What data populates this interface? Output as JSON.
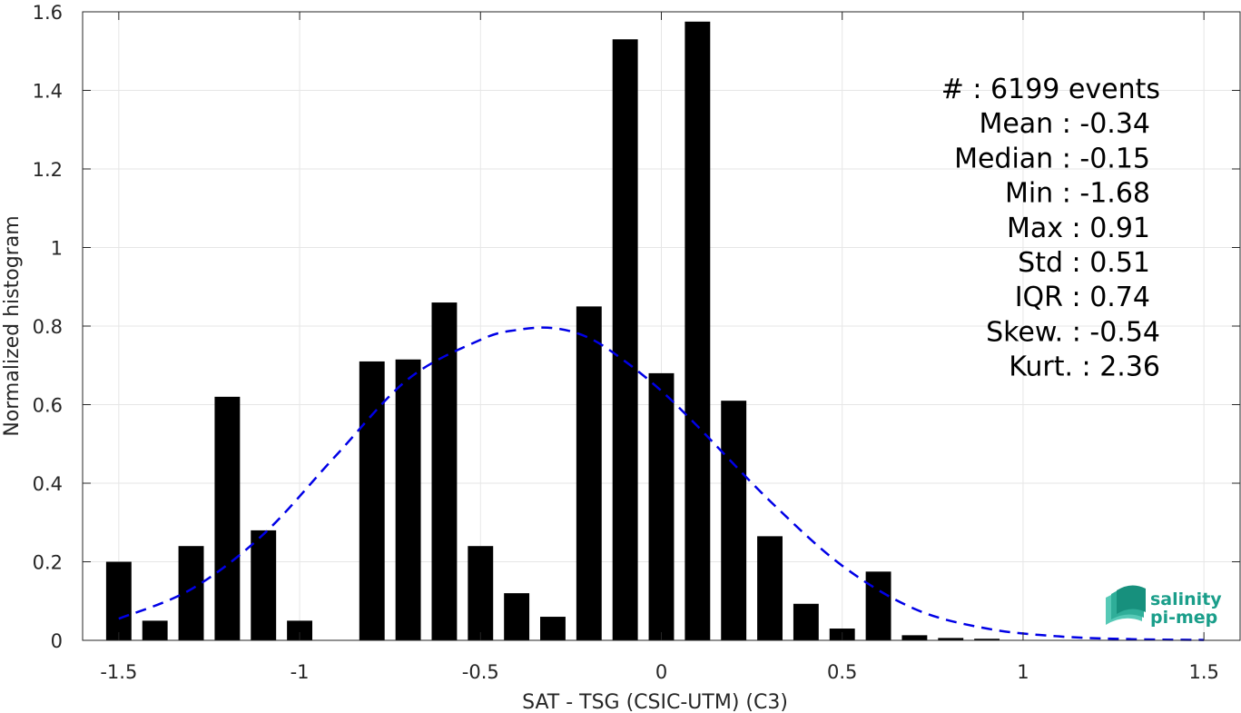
{
  "chart_data": {
    "type": "bar",
    "xlabel": "SAT - TSG (CSIC-UTM) (C3)",
    "ylabel": "Normalized histogram",
    "xlim": [
      -1.6,
      1.6
    ],
    "ylim": [
      0,
      1.6
    ],
    "xticks": [
      -1.5,
      -1,
      -0.5,
      0,
      0.5,
      1,
      1.5
    ],
    "xtick_labels": [
      "-1.5",
      "-1",
      "-0.5",
      "0",
      "0.5",
      "1",
      "1.5"
    ],
    "yticks": [
      0,
      0.2,
      0.4,
      0.6,
      0.8,
      1,
      1.2,
      1.4,
      1.6
    ],
    "ytick_labels": [
      "0",
      "0.2",
      "0.4",
      "0.6",
      "0.8",
      "1",
      "1.2",
      "1.4",
      "1.6"
    ],
    "grid": true,
    "bar_width": 0.07,
    "bars": {
      "x": [
        -1.5,
        -1.4,
        -1.3,
        -1.2,
        -1.1,
        -1.0,
        -0.9,
        -0.8,
        -0.7,
        -0.6,
        -0.5,
        -0.4,
        -0.3,
        -0.2,
        -0.1,
        0.0,
        0.1,
        0.2,
        0.3,
        0.4,
        0.5,
        0.6,
        0.7,
        0.8,
        0.9
      ],
      "values": [
        0.2,
        0.05,
        0.24,
        0.62,
        0.28,
        0.05,
        0.0,
        0.71,
        0.715,
        0.86,
        0.24,
        0.12,
        0.06,
        0.85,
        1.53,
        0.68,
        1.575,
        0.61,
        0.265,
        0.093,
        0.03,
        0.175,
        0.013,
        0.006,
        0.004
      ],
      "color": "#000000"
    },
    "fit_curve": {
      "style": "dashed",
      "color": "#0000e6",
      "x": [
        -1.5,
        -1.3,
        -1.1,
        -0.9,
        -0.7,
        -0.5,
        -0.4,
        -0.3,
        -0.2,
        -0.1,
        0.0,
        0.1,
        0.3,
        0.5,
        0.7,
        0.9,
        1.1,
        1.3,
        1.5
      ],
      "y": [
        0.055,
        0.13,
        0.27,
        0.47,
        0.665,
        0.765,
        0.79,
        0.795,
        0.77,
        0.71,
        0.635,
        0.545,
        0.355,
        0.19,
        0.08,
        0.03,
        0.01,
        0.003,
        0.001
      ]
    },
    "stats": [
      "#  : 6199 events",
      "Mean : -0.34",
      "Median : -0.15",
      "Min : -1.68",
      "Max : 0.91",
      "Std : 0.51",
      "IQR : 0.74",
      "Skew. : -0.54",
      "Kurt. : 2.36"
    ]
  },
  "logo": {
    "line1": "salinity",
    "line2": "pi-mep",
    "color": "#1a9e8a"
  }
}
